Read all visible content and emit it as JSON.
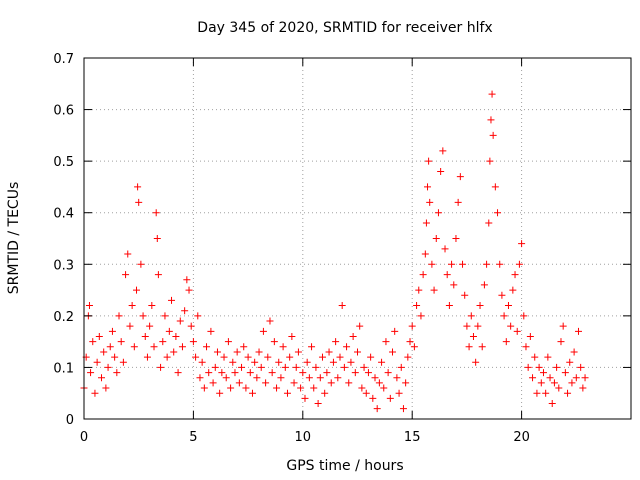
{
  "chart_data": {
    "type": "scatter",
    "title": "Day 345 of 2020, SRMTID for receiver hlfx",
    "xlabel": "GPS time / hours",
    "ylabel": "SRMTID / TECUs",
    "xlim": [
      0,
      25
    ],
    "ylim": [
      0,
      0.7
    ],
    "xticks": [
      0,
      5,
      10,
      15,
      20
    ],
    "xtick_labels": [
      "0",
      "5",
      "10",
      "15",
      "20"
    ],
    "yticks": [
      0,
      0.1,
      0.2,
      0.3,
      0.4,
      0.5,
      0.6,
      0.7
    ],
    "ytick_labels": [
      "0",
      "0.1",
      "0.2",
      "0.3",
      "0.4",
      "0.5",
      "0.6",
      "0.7"
    ],
    "grid": true,
    "marker": "+",
    "color": "#ff0000",
    "series": [
      {
        "name": "SRMTID",
        "points": [
          [
            0.0,
            0.06
          ],
          [
            0.1,
            0.12
          ],
          [
            0.2,
            0.2
          ],
          [
            0.25,
            0.22
          ],
          [
            0.3,
            0.09
          ],
          [
            0.4,
            0.15
          ],
          [
            0.5,
            0.05
          ],
          [
            0.6,
            0.11
          ],
          [
            0.7,
            0.16
          ],
          [
            0.8,
            0.08
          ],
          [
            0.9,
            0.13
          ],
          [
            1.0,
            0.06
          ],
          [
            1.1,
            0.1
          ],
          [
            1.2,
            0.14
          ],
          [
            1.3,
            0.17
          ],
          [
            1.4,
            0.12
          ],
          [
            1.5,
            0.09
          ],
          [
            1.6,
            0.2
          ],
          [
            1.7,
            0.15
          ],
          [
            1.8,
            0.11
          ],
          [
            1.9,
            0.28
          ],
          [
            2.0,
            0.32
          ],
          [
            2.1,
            0.18
          ],
          [
            2.2,
            0.22
          ],
          [
            2.3,
            0.14
          ],
          [
            2.4,
            0.25
          ],
          [
            2.45,
            0.45
          ],
          [
            2.5,
            0.42
          ],
          [
            2.6,
            0.3
          ],
          [
            2.7,
            0.2
          ],
          [
            2.8,
            0.16
          ],
          [
            2.9,
            0.12
          ],
          [
            3.0,
            0.18
          ],
          [
            3.1,
            0.22
          ],
          [
            3.2,
            0.14
          ],
          [
            3.3,
            0.4
          ],
          [
            3.35,
            0.35
          ],
          [
            3.4,
            0.28
          ],
          [
            3.5,
            0.1
          ],
          [
            3.6,
            0.15
          ],
          [
            3.7,
            0.2
          ],
          [
            3.8,
            0.12
          ],
          [
            3.9,
            0.17
          ],
          [
            4.0,
            0.23
          ],
          [
            4.1,
            0.13
          ],
          [
            4.2,
            0.16
          ],
          [
            4.3,
            0.09
          ],
          [
            4.4,
            0.19
          ],
          [
            4.5,
            0.14
          ],
          [
            4.6,
            0.21
          ],
          [
            4.7,
            0.27
          ],
          [
            4.8,
            0.25
          ],
          [
            4.9,
            0.18
          ],
          [
            5.0,
            0.15
          ],
          [
            5.1,
            0.12
          ],
          [
            5.2,
            0.2
          ],
          [
            5.3,
            0.08
          ],
          [
            5.4,
            0.11
          ],
          [
            5.5,
            0.06
          ],
          [
            5.6,
            0.14
          ],
          [
            5.7,
            0.09
          ],
          [
            5.8,
            0.17
          ],
          [
            5.9,
            0.07
          ],
          [
            6.0,
            0.1
          ],
          [
            6.1,
            0.13
          ],
          [
            6.2,
            0.05
          ],
          [
            6.3,
            0.09
          ],
          [
            6.4,
            0.12
          ],
          [
            6.5,
            0.08
          ],
          [
            6.6,
            0.15
          ],
          [
            6.7,
            0.06
          ],
          [
            6.8,
            0.11
          ],
          [
            6.9,
            0.09
          ],
          [
            7.0,
            0.13
          ],
          [
            7.1,
            0.07
          ],
          [
            7.2,
            0.1
          ],
          [
            7.3,
            0.14
          ],
          [
            7.4,
            0.06
          ],
          [
            7.5,
            0.12
          ],
          [
            7.6,
            0.09
          ],
          [
            7.7,
            0.05
          ],
          [
            7.8,
            0.11
          ],
          [
            7.9,
            0.08
          ],
          [
            8.0,
            0.13
          ],
          [
            8.1,
            0.1
          ],
          [
            8.2,
            0.17
          ],
          [
            8.3,
            0.07
          ],
          [
            8.4,
            0.12
          ],
          [
            8.5,
            0.19
          ],
          [
            8.6,
            0.09
          ],
          [
            8.7,
            0.15
          ],
          [
            8.8,
            0.06
          ],
          [
            8.9,
            0.11
          ],
          [
            9.0,
            0.08
          ],
          [
            9.1,
            0.14
          ],
          [
            9.2,
            0.1
          ],
          [
            9.3,
            0.05
          ],
          [
            9.4,
            0.12
          ],
          [
            9.5,
            0.16
          ],
          [
            9.6,
            0.07
          ],
          [
            9.7,
            0.1
          ],
          [
            9.8,
            0.13
          ],
          [
            9.9,
            0.06
          ],
          [
            10.0,
            0.09
          ],
          [
            10.1,
            0.04
          ],
          [
            10.2,
            0.11
          ],
          [
            10.3,
            0.08
          ],
          [
            10.4,
            0.14
          ],
          [
            10.5,
            0.06
          ],
          [
            10.6,
            0.1
          ],
          [
            10.7,
            0.03
          ],
          [
            10.8,
            0.08
          ],
          [
            10.9,
            0.12
          ],
          [
            11.0,
            0.05
          ],
          [
            11.1,
            0.09
          ],
          [
            11.2,
            0.13
          ],
          [
            11.3,
            0.07
          ],
          [
            11.4,
            0.11
          ],
          [
            11.5,
            0.15
          ],
          [
            11.6,
            0.08
          ],
          [
            11.7,
            0.12
          ],
          [
            11.8,
            0.22
          ],
          [
            11.9,
            0.1
          ],
          [
            12.0,
            0.14
          ],
          [
            12.1,
            0.07
          ],
          [
            12.2,
            0.11
          ],
          [
            12.3,
            0.16
          ],
          [
            12.4,
            0.09
          ],
          [
            12.5,
            0.13
          ],
          [
            12.6,
            0.18
          ],
          [
            12.7,
            0.06
          ],
          [
            12.8,
            0.1
          ],
          [
            12.9,
            0.05
          ],
          [
            13.0,
            0.09
          ],
          [
            13.1,
            0.12
          ],
          [
            13.2,
            0.04
          ],
          [
            13.3,
            0.08
          ],
          [
            13.4,
            0.02
          ],
          [
            13.5,
            0.07
          ],
          [
            13.6,
            0.11
          ],
          [
            13.7,
            0.06
          ],
          [
            13.8,
            0.15
          ],
          [
            13.9,
            0.09
          ],
          [
            14.0,
            0.04
          ],
          [
            14.1,
            0.13
          ],
          [
            14.2,
            0.17
          ],
          [
            14.3,
            0.08
          ],
          [
            14.4,
            0.05
          ],
          [
            14.5,
            0.1
          ],
          [
            14.6,
            0.02
          ],
          [
            14.7,
            0.07
          ],
          [
            14.8,
            0.12
          ],
          [
            14.9,
            0.15
          ],
          [
            15.0,
            0.18
          ],
          [
            15.1,
            0.14
          ],
          [
            15.2,
            0.22
          ],
          [
            15.3,
            0.25
          ],
          [
            15.4,
            0.2
          ],
          [
            15.5,
            0.28
          ],
          [
            15.6,
            0.32
          ],
          [
            15.65,
            0.38
          ],
          [
            15.7,
            0.45
          ],
          [
            15.75,
            0.5
          ],
          [
            15.8,
            0.42
          ],
          [
            15.9,
            0.3
          ],
          [
            16.0,
            0.25
          ],
          [
            16.1,
            0.35
          ],
          [
            16.2,
            0.4
          ],
          [
            16.3,
            0.48
          ],
          [
            16.4,
            0.52
          ],
          [
            16.5,
            0.33
          ],
          [
            16.6,
            0.28
          ],
          [
            16.7,
            0.22
          ],
          [
            16.8,
            0.3
          ],
          [
            16.9,
            0.26
          ],
          [
            17.0,
            0.35
          ],
          [
            17.1,
            0.42
          ],
          [
            17.2,
            0.47
          ],
          [
            17.3,
            0.3
          ],
          [
            17.4,
            0.24
          ],
          [
            17.5,
            0.18
          ],
          [
            17.6,
            0.14
          ],
          [
            17.7,
            0.2
          ],
          [
            17.8,
            0.16
          ],
          [
            17.9,
            0.11
          ],
          [
            18.0,
            0.18
          ],
          [
            18.1,
            0.22
          ],
          [
            18.2,
            0.14
          ],
          [
            18.3,
            0.26
          ],
          [
            18.4,
            0.3
          ],
          [
            18.5,
            0.38
          ],
          [
            18.55,
            0.5
          ],
          [
            18.6,
            0.58
          ],
          [
            18.65,
            0.63
          ],
          [
            18.7,
            0.55
          ],
          [
            18.8,
            0.45
          ],
          [
            18.9,
            0.4
          ],
          [
            19.0,
            0.3
          ],
          [
            19.1,
            0.24
          ],
          [
            19.2,
            0.2
          ],
          [
            19.3,
            0.15
          ],
          [
            19.4,
            0.22
          ],
          [
            19.5,
            0.18
          ],
          [
            19.6,
            0.25
          ],
          [
            19.7,
            0.28
          ],
          [
            19.8,
            0.17
          ],
          [
            19.9,
            0.3
          ],
          [
            20.0,
            0.34
          ],
          [
            20.1,
            0.2
          ],
          [
            20.2,
            0.14
          ],
          [
            20.3,
            0.1
          ],
          [
            20.4,
            0.16
          ],
          [
            20.5,
            0.08
          ],
          [
            20.6,
            0.12
          ],
          [
            20.7,
            0.05
          ],
          [
            20.8,
            0.1
          ],
          [
            20.9,
            0.07
          ],
          [
            21.0,
            0.09
          ],
          [
            21.1,
            0.05
          ],
          [
            21.2,
            0.12
          ],
          [
            21.3,
            0.08
          ],
          [
            21.4,
            0.03
          ],
          [
            21.5,
            0.07
          ],
          [
            21.6,
            0.1
          ],
          [
            21.7,
            0.06
          ],
          [
            21.8,
            0.15
          ],
          [
            21.9,
            0.18
          ],
          [
            22.0,
            0.09
          ],
          [
            22.1,
            0.05
          ],
          [
            22.2,
            0.11
          ],
          [
            22.3,
            0.07
          ],
          [
            22.4,
            0.13
          ],
          [
            22.5,
            0.08
          ],
          [
            22.6,
            0.17
          ],
          [
            22.7,
            0.1
          ],
          [
            22.8,
            0.06
          ],
          [
            22.9,
            0.08
          ]
        ]
      }
    ]
  }
}
